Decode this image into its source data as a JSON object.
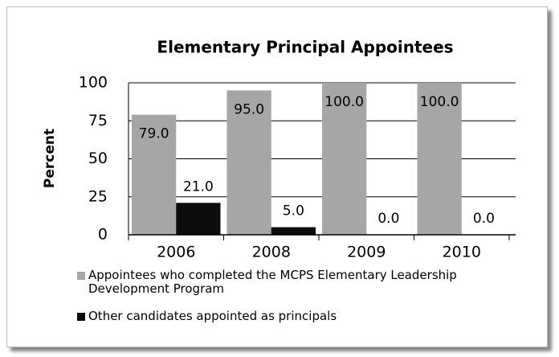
{
  "chart_data": {
    "type": "bar",
    "title": "Elementary Principal Appointees",
    "ylabel": "Percent",
    "categories": [
      "2006",
      "2008",
      "2009",
      "2010"
    ],
    "series": [
      {
        "name": "Appointees who completed the MCPS Elementary Leadership Development Program",
        "color": "#a6a6a6",
        "values": [
          79,
          95,
          100,
          100
        ],
        "value_labels": [
          "79.0",
          "95.0",
          "100.0",
          "100.0"
        ]
      },
      {
        "name": "Other candidates appointed as principals",
        "color": "#0d0d0d",
        "values": [
          21,
          5,
          0,
          0
        ],
        "value_labels": [
          "21.0",
          "5.0",
          "0.0",
          "0.0"
        ]
      }
    ],
    "ylim": [
      0,
      100
    ],
    "yticks": [
      0,
      25,
      50,
      75,
      100
    ],
    "grid": true,
    "legend": "bottom"
  }
}
